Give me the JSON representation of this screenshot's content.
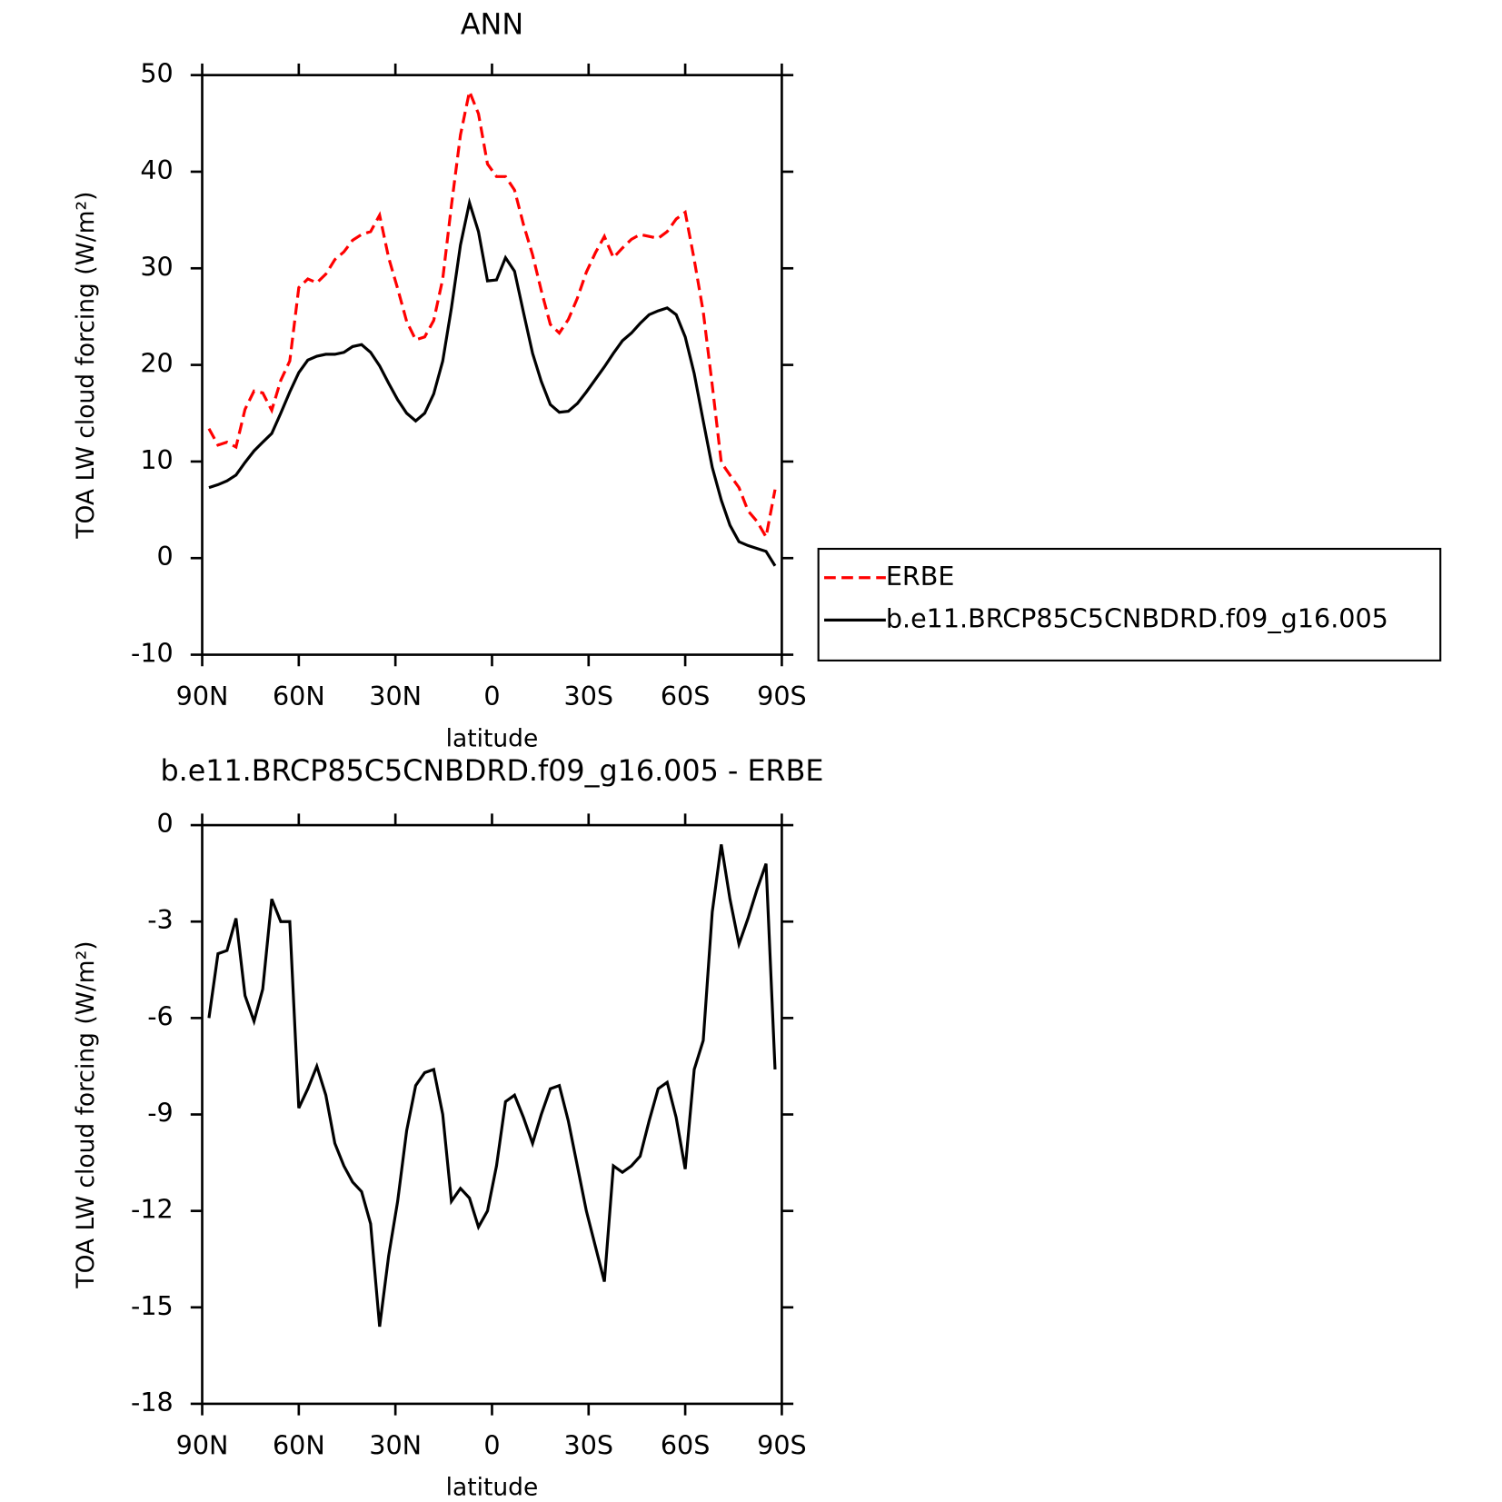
{
  "chart_data": [
    {
      "type": "line",
      "title": "ANN",
      "xlabel": "latitude",
      "ylabel": "TOA LW cloud forcing (W/m²)",
      "x": [
        87.9,
        85.1,
        82.3,
        79.5,
        76.7,
        73.9,
        71.2,
        68.4,
        65.6,
        62.8,
        60.0,
        57.2,
        54.4,
        51.6,
        48.8,
        46.0,
        43.3,
        40.5,
        37.7,
        34.9,
        32.1,
        29.3,
        26.5,
        23.7,
        20.9,
        18.1,
        15.3,
        12.6,
        9.8,
        7.0,
        4.2,
        1.4,
        -1.4,
        -4.2,
        -7.0,
        -9.8,
        -12.6,
        -15.3,
        -18.1,
        -20.9,
        -23.7,
        -26.5,
        -29.3,
        -32.1,
        -34.9,
        -37.7,
        -40.5,
        -43.3,
        -46.0,
        -48.8,
        -51.6,
        -54.4,
        -57.2,
        -60.0,
        -62.8,
        -65.6,
        -68.4,
        -71.2,
        -73.9,
        -76.7,
        -79.5,
        -82.3,
        -85.1,
        -87.9
      ],
      "series": [
        {
          "name": "ERBE",
          "color": "#ff0000",
          "line_style": "dashed",
          "values": [
            13.4,
            11.7,
            12.0,
            11.5,
            15.4,
            17.3,
            17.1,
            15.3,
            18.4,
            20.4,
            28.0,
            28.9,
            28.5,
            29.4,
            30.9,
            31.7,
            32.9,
            33.5,
            33.8,
            35.5,
            31.1,
            27.9,
            24.5,
            22.6,
            22.9,
            24.6,
            28.9,
            36.5,
            43.8,
            48.3,
            46.0,
            40.8,
            39.5,
            39.5,
            38.1,
            34.5,
            31.4,
            27.7,
            24.2,
            23.3,
            24.7,
            26.9,
            29.6,
            31.6,
            33.3,
            31.1,
            32.1,
            33.0,
            33.5,
            33.3,
            33.1,
            33.8,
            35.1,
            35.8,
            30.9,
            25.5,
            17.9,
            9.9,
            8.6,
            7.3,
            4.9,
            3.8,
            2.2,
            7.1
          ]
        },
        {
          "name": "b.e11.BRCP85C5CNBDRD.f09_g16.005",
          "color": "#000000",
          "line_style": "solid",
          "values": [
            7.3,
            7.6,
            8.0,
            8.6,
            9.9,
            11.1,
            12.0,
            12.9,
            15.0,
            17.2,
            19.2,
            20.5,
            20.9,
            21.1,
            21.1,
            21.3,
            21.9,
            22.1,
            21.3,
            19.9,
            18.1,
            16.4,
            15.0,
            14.2,
            15.0,
            17.0,
            20.4,
            25.9,
            32.4,
            36.8,
            33.8,
            28.7,
            28.8,
            31.1,
            29.7,
            25.4,
            21.2,
            18.3,
            15.9,
            15.1,
            15.2,
            16.0,
            17.2,
            18.5,
            19.8,
            21.2,
            22.5,
            23.3,
            24.3,
            25.2,
            25.6,
            25.9,
            25.2,
            22.9,
            19.1,
            14.2,
            9.4,
            6.0,
            3.4,
            1.7,
            1.3,
            1.0,
            0.7,
            -0.8
          ]
        }
      ],
      "xlim": [
        90,
        -90
      ],
      "xticks": [
        {
          "value": 90,
          "label": "90N"
        },
        {
          "value": 60,
          "label": "60N"
        },
        {
          "value": 30,
          "label": "30N"
        },
        0,
        {
          "value": -30,
          "label": "30S"
        },
        {
          "value": -60,
          "label": "60S"
        },
        {
          "value": -90,
          "label": "90S"
        }
      ],
      "ylim": [
        -10,
        50
      ],
      "yticks": [
        -10,
        0,
        10,
        20,
        30,
        40,
        50
      ],
      "legend": "right"
    },
    {
      "type": "line",
      "title": "b.e11.BRCP85C5CNBDRD.f09_g16.005 - ERBE",
      "xlabel": "latitude",
      "ylabel": "TOA LW cloud forcing (W/m²)",
      "x": [
        87.9,
        85.1,
        82.3,
        79.5,
        76.7,
        73.9,
        71.2,
        68.4,
        65.6,
        62.8,
        60.0,
        57.2,
        54.4,
        51.6,
        48.8,
        46.0,
        43.3,
        40.5,
        37.7,
        34.9,
        32.1,
        29.3,
        26.5,
        23.7,
        20.9,
        18.1,
        15.3,
        12.6,
        9.8,
        7.0,
        4.2,
        1.4,
        -1.4,
        -4.2,
        -7.0,
        -9.8,
        -12.6,
        -15.3,
        -18.1,
        -20.9,
        -23.7,
        -26.5,
        -29.3,
        -32.1,
        -34.9,
        -37.7,
        -40.5,
        -43.3,
        -46.0,
        -48.8,
        -51.6,
        -54.4,
        -57.2,
        -60.0,
        -62.8,
        -65.6,
        -68.4,
        -71.2,
        -73.9,
        -76.7,
        -79.5,
        -82.3,
        -85.1,
        -87.9
      ],
      "series": [
        {
          "color": "#000000",
          "line_style": "solid",
          "values": [
            -6.0,
            -4.0,
            -3.9,
            -2.9,
            -5.3,
            -6.1,
            -5.1,
            -2.3,
            -3.0,
            -3.0,
            -8.8,
            -8.2,
            -7.5,
            -8.4,
            -9.9,
            -10.6,
            -11.1,
            -11.4,
            -12.4,
            -15.6,
            -13.4,
            -11.7,
            -9.5,
            -8.1,
            -7.7,
            -7.6,
            -9.0,
            -11.7,
            -11.3,
            -11.6,
            -12.5,
            -12.0,
            -10.6,
            -8.6,
            -8.4,
            -9.1,
            -9.9,
            -9.0,
            -8.2,
            -8.1,
            -9.2,
            -10.6,
            -12.0,
            -13.1,
            -14.2,
            -10.6,
            -10.8,
            -10.6,
            -10.3,
            -9.2,
            -8.2,
            -8.0,
            -9.1,
            -10.7,
            -7.6,
            -6.7,
            -2.7,
            -0.6,
            -2.3,
            -3.7,
            -2.9,
            -2.0,
            -1.2,
            -7.6
          ]
        }
      ],
      "xlim": [
        90,
        -90
      ],
      "xticks": [
        {
          "value": 90,
          "label": "90N"
        },
        {
          "value": 60,
          "label": "60N"
        },
        {
          "value": 30,
          "label": "30N"
        },
        0,
        {
          "value": -30,
          "label": "30S"
        },
        {
          "value": -60,
          "label": "60S"
        },
        {
          "value": -90,
          "label": "90S"
        }
      ],
      "ylim": [
        -18,
        0
      ],
      "yticks": [
        -18,
        -15,
        -12,
        -9,
        -6,
        -3,
        0
      ]
    }
  ]
}
